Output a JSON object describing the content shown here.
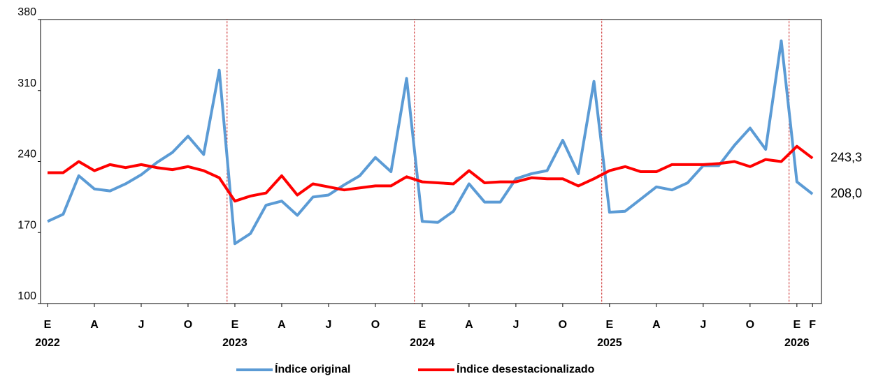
{
  "chart_data": {
    "type": "line",
    "categories": [
      "E",
      null,
      null,
      "A",
      null,
      null,
      "J",
      null,
      null,
      "O",
      null,
      null,
      "E",
      null,
      null,
      "A",
      null,
      null,
      "J",
      null,
      null,
      "O",
      null,
      null,
      "E",
      null,
      null,
      "A",
      null,
      null,
      "J",
      null,
      null,
      "O",
      null,
      null,
      "E",
      null,
      null,
      "A",
      null,
      null,
      "J",
      null,
      null,
      "O",
      null,
      null,
      "E",
      "F"
    ],
    "year_labels": [
      "2022",
      null,
      null,
      null,
      null,
      null,
      null,
      null,
      null,
      null,
      null,
      null,
      "2023",
      null,
      null,
      null,
      null,
      null,
      null,
      null,
      null,
      null,
      null,
      null,
      "2024",
      null,
      null,
      null,
      null,
      null,
      null,
      null,
      null,
      null,
      null,
      null,
      "2025",
      null,
      null,
      null,
      null,
      null,
      null,
      null,
      null,
      null,
      null,
      null,
      "2026",
      null
    ],
    "ylim": [
      100,
      380
    ],
    "yticks": [
      100,
      170,
      240,
      310,
      380
    ],
    "series": [
      {
        "name": "Índice original",
        "color": "#5b9bd5",
        "values": [
          181,
          188,
          226,
          213,
          211,
          218,
          227,
          239,
          249,
          265,
          247,
          330,
          159,
          169,
          197,
          201,
          187,
          205,
          207,
          217,
          226,
          244,
          230,
          322,
          181,
          180,
          191,
          218,
          200,
          200,
          223,
          228,
          231,
          261,
          228,
          319,
          190,
          191,
          203,
          215,
          212,
          219,
          236,
          236,
          256,
          273,
          252,
          359,
          220,
          208.0
        ],
        "value_labels": [
          null,
          null,
          null,
          null,
          null,
          null,
          null,
          null,
          null,
          null,
          null,
          null,
          null,
          null,
          null,
          null,
          null,
          null,
          null,
          null,
          null,
          null,
          null,
          null,
          null,
          null,
          null,
          null,
          null,
          null,
          null,
          null,
          null,
          null,
          null,
          null,
          null,
          null,
          null,
          null,
          null,
          null,
          null,
          null,
          null,
          null,
          null,
          null,
          null,
          "208,0"
        ],
        "label_color": "#000000"
      },
      {
        "name": "Índice desestacionalizado",
        "color": "#ff0000",
        "values": [
          229,
          229,
          240,
          231,
          237,
          234,
          237,
          234,
          232,
          235,
          231,
          224,
          201,
          206,
          209,
          226,
          207,
          218,
          215,
          212,
          214,
          216,
          216,
          225,
          220,
          219,
          218,
          231,
          219,
          220,
          220,
          224,
          223,
          223,
          216,
          223,
          231,
          235,
          230,
          230,
          237,
          237,
          237,
          238,
          240,
          235,
          242,
          240,
          255,
          243.3
        ],
        "value_labels": [
          null,
          null,
          null,
          null,
          null,
          null,
          null,
          null,
          null,
          null,
          null,
          null,
          null,
          null,
          null,
          null,
          null,
          null,
          null,
          null,
          null,
          null,
          null,
          null,
          null,
          null,
          null,
          null,
          null,
          null,
          null,
          null,
          null,
          null,
          null,
          null,
          null,
          null,
          null,
          null,
          null,
          null,
          null,
          null,
          null,
          null,
          null,
          null,
          null,
          "243,3"
        ],
        "label_color": "#c00000"
      }
    ]
  }
}
